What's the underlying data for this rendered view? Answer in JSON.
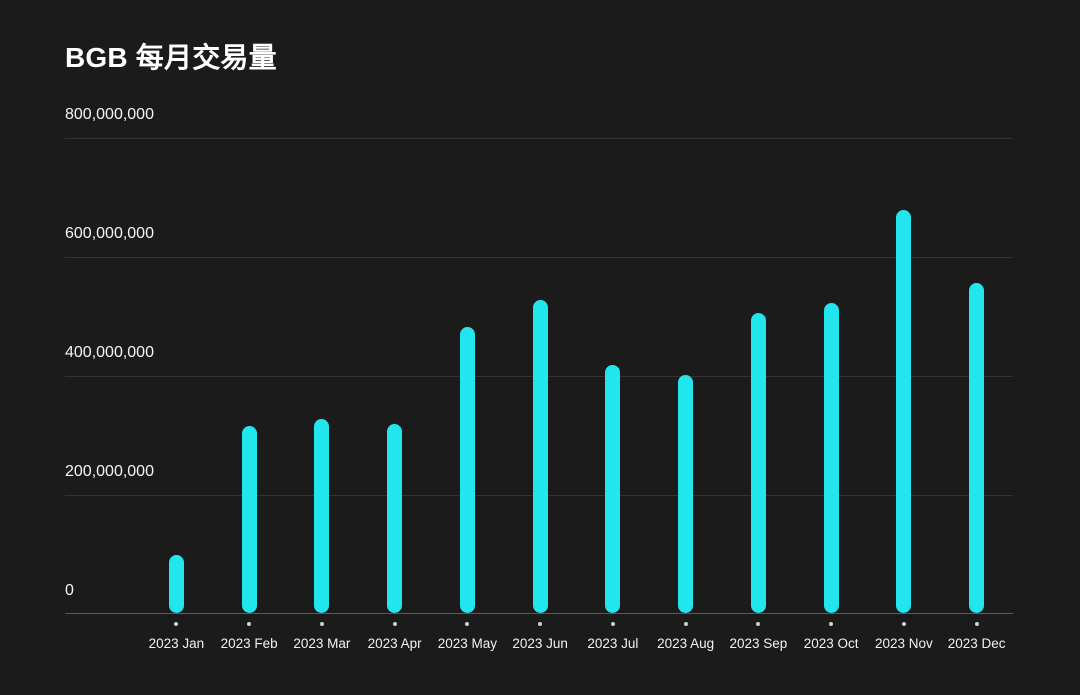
{
  "page": {
    "background_color": "#1B1B1B"
  },
  "chart_data": {
    "type": "bar",
    "title": "BGB 每月交易量",
    "categories": [
      "2023 Jan",
      "2023 Feb",
      "2023 Mar",
      "2023 Apr",
      "2023 May",
      "2023 Jun",
      "2023 Jul",
      "2023 Aug",
      "2023 Sep",
      "2023 Oct",
      "2023 Nov",
      "2023 Dec"
    ],
    "values": [
      97000000,
      315000000,
      326000000,
      318000000,
      481000000,
      526000000,
      417000000,
      400000000,
      504000000,
      521000000,
      678000000,
      555000000
    ],
    "xlabel": "",
    "ylabel": "",
    "ylim": [
      0,
      800000000
    ],
    "yticks": [
      {
        "value": 0,
        "label": "0"
      },
      {
        "value": 200000000,
        "label": "200,000,000"
      },
      {
        "value": 400000000,
        "label": "400,000,000"
      },
      {
        "value": 600000000,
        "label": "600,000,000"
      },
      {
        "value": 800000000,
        "label": "800,000,000"
      }
    ],
    "grid": true,
    "legend_position": "none",
    "colors": {
      "bar": "#23E5EE",
      "gridline": "#333333",
      "axis_line": "#5A5A5A",
      "tick_dot": "#CFCFCF",
      "y_label": "#F5F5F5",
      "x_label": "#F2F2F2",
      "title": "#FFFFFF"
    }
  }
}
